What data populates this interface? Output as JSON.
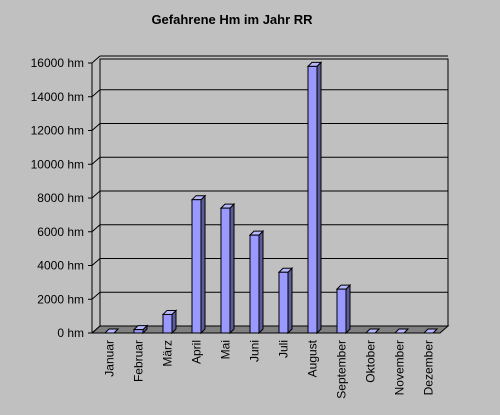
{
  "chart_data": {
    "type": "bar",
    "title": "Gefahrene Hm im Jahr RR",
    "categories": [
      "Januar",
      "Februar",
      "März",
      "April",
      "Mai",
      "Juni",
      "Juli",
      "August",
      "September",
      "Oktober",
      "November",
      "Dezember"
    ],
    "values": [
      0,
      200,
      1100,
      7900,
      7400,
      5800,
      3600,
      15800,
      2600,
      0,
      0,
      0
    ],
    "color": "#9999ff",
    "ylim": [
      0,
      16000
    ],
    "yticks": [
      {
        "value": 0,
        "label": "0 hm"
      },
      {
        "value": 2000,
        "label": "2000 hm"
      },
      {
        "value": 4000,
        "label": "4000 hm"
      },
      {
        "value": 6000,
        "label": "6000 hm"
      },
      {
        "value": 8000,
        "label": "8000 hm"
      },
      {
        "value": 10000,
        "label": "10000 hm"
      },
      {
        "value": 12000,
        "label": "12000 hm"
      },
      {
        "value": 14000,
        "label": "14000 hm"
      },
      {
        "value": 16000,
        "label": "16000 hm"
      }
    ],
    "grid": true
  }
}
